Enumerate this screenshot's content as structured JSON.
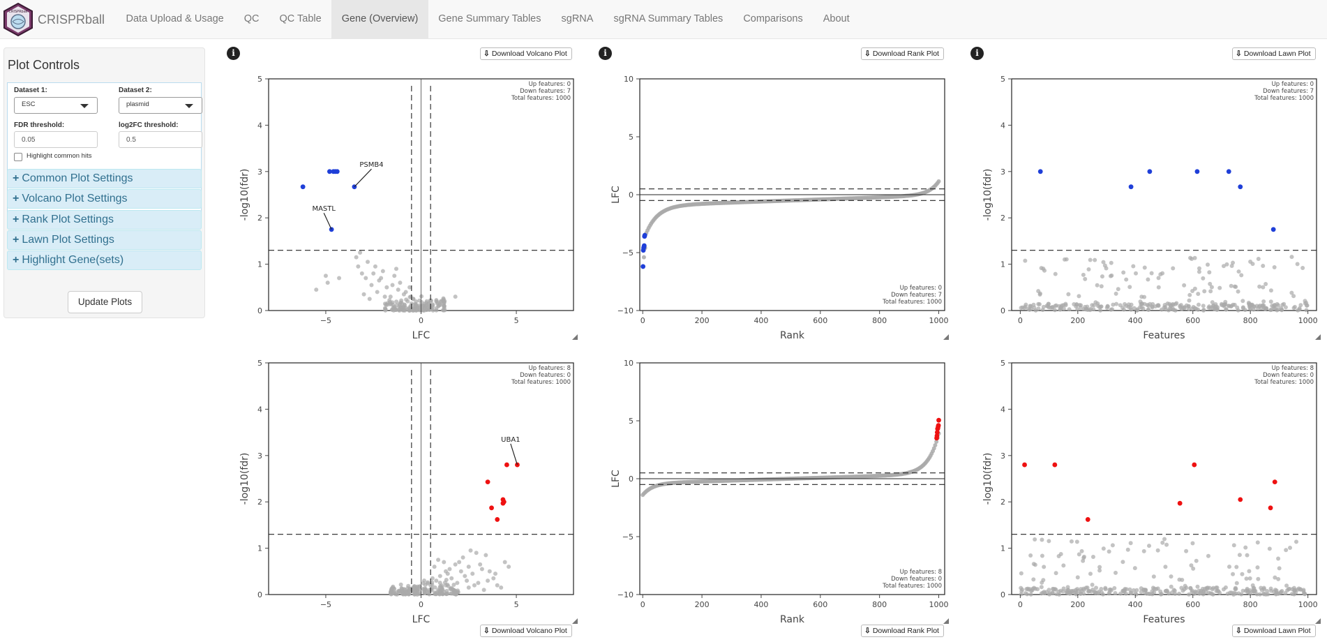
{
  "app": {
    "brand": "CRISPRball",
    "logo_text": "CRISPRball"
  },
  "nav": [
    {
      "label": "Data Upload & Usage",
      "key": "upload",
      "active": false
    },
    {
      "label": "QC",
      "key": "qc",
      "active": false
    },
    {
      "label": "QC Table",
      "key": "qc-table",
      "active": false
    },
    {
      "label": "Gene (Overview)",
      "key": "gene-overview",
      "active": true
    },
    {
      "label": "Gene Summary Tables",
      "key": "gene-tables",
      "active": false
    },
    {
      "label": "sgRNA",
      "key": "sgrna",
      "active": false
    },
    {
      "label": "sgRNA Summary Tables",
      "key": "sgrna-tables",
      "active": false
    },
    {
      "label": "Comparisons",
      "key": "comparisons",
      "active": false
    },
    {
      "label": "About",
      "key": "about",
      "active": false
    }
  ],
  "sidebar": {
    "title": "Plot Controls",
    "dataset1_label": "Dataset 1:",
    "dataset1_value": "ESC",
    "dataset2_label": "Dataset 2:",
    "dataset2_value": "plasmid",
    "fdr_label": "FDR threshold:",
    "fdr_value": "0.05",
    "lfc_label": "log2FC threshold:",
    "lfc_value": "0.5",
    "highlight_label": "Highlight common hits",
    "accordions": [
      "Common Plot Settings",
      "Volcano Plot Settings",
      "Rank Plot Settings",
      "Lawn Plot Settings",
      "Highlight Gene(sets)"
    ],
    "update_button": "Update Plots"
  },
  "buttons": {
    "volcano": "Download Volcano Plot",
    "rank": "Download Rank Plot",
    "lawn": "Download Lawn Plot",
    "info_glyph": "i",
    "download_glyph": "⇩"
  },
  "colors": {
    "down": "#1f3fd8",
    "up": "#ee1111",
    "ns": "#a9a9a9"
  },
  "plots": {
    "volcano_top": {
      "xlabel": "LFC",
      "ylabel": "-log10(fdr)",
      "ann": [
        "Up features: 0",
        "Down features: 7",
        "Total features: 1000"
      ],
      "labels": [
        {
          "text": "PSMB4",
          "x": -3.5,
          "y": 2.67,
          "tx": -2.6,
          "ty": 3.1
        },
        {
          "text": "MASTL",
          "x": -4.7,
          "y": 1.75,
          "tx": -5.1,
          "ty": 2.15
        }
      ]
    },
    "volcano_bottom": {
      "xlabel": "LFC",
      "ylabel": "-log10(fdr)",
      "ann": [
        "Up features: 8",
        "Down features: 0",
        "Total features: 1000"
      ],
      "labels": [
        {
          "text": "UBA1",
          "x": 5.05,
          "y": 2.8,
          "tx": 4.7,
          "ty": 3.3
        }
      ]
    },
    "rank_top": {
      "xlabel": "Rank",
      "ylabel": "LFC",
      "ann": [
        "Up features: 0",
        "Down features: 7",
        "Total features: 1000"
      ]
    },
    "rank_bottom": {
      "xlabel": "Rank",
      "ylabel": "LFC",
      "ann": [
        "Up features: 8",
        "Down features: 0",
        "Total features: 1000"
      ]
    },
    "lawn_top": {
      "xlabel": "Features",
      "ylabel": "-log10(fdr)",
      "ann": [
        "Up features: 0",
        "Down features: 7",
        "Total features: 1000"
      ]
    },
    "lawn_bottom": {
      "xlabel": "Features",
      "ylabel": "-log10(fdr)",
      "ann": [
        "Up features: 8",
        "Down features: 0",
        "Total features: 1000"
      ]
    }
  },
  "chart_data": [
    {
      "type": "scatter",
      "id": "volcano_top",
      "xlabel": "LFC",
      "ylabel": "-log10(fdr)",
      "xlim": [
        -8,
        8
      ],
      "ylim": [
        0,
        5
      ],
      "xticks": [
        -5,
        0,
        5
      ],
      "yticks": [
        0,
        1,
        2,
        3,
        4,
        5
      ],
      "hlines": [
        1.3
      ],
      "vlines": [
        -0.5,
        0.5
      ],
      "highlight": {
        "color": "down",
        "x": [
          -6.2,
          -4.8,
          -4.6,
          -4.5,
          -4.4,
          -3.5,
          -4.7
        ],
        "y": [
          2.67,
          3.0,
          3.0,
          3.0,
          3.0,
          2.67,
          1.75
        ]
      },
      "background": {
        "color": "ns",
        "x": [
          -5.0,
          -4.9,
          -4.3,
          -3.4,
          -3.3,
          -3.1,
          -2.9,
          -2.8,
          -2.6,
          -2.5,
          -2.3,
          -2.2,
          -2.0,
          -1.8,
          -1.6,
          -1.4,
          -1.2,
          -1.1,
          -0.9,
          -0.7,
          -0.5,
          -3.2,
          -2.4,
          -1.9,
          -1.5,
          -5.5,
          -2.7,
          -1.3,
          -0.8,
          -0.3,
          0.1,
          0.4,
          0.8,
          1.2,
          1.8,
          -0.6,
          0.2,
          0.6,
          1.0,
          -2.1,
          -3.0,
          -1.0,
          -0.4,
          0.0,
          0.3
        ],
        "y": [
          0.75,
          0.6,
          0.7,
          1.15,
          0.95,
          0.8,
          0.7,
          1.05,
          0.55,
          0.8,
          0.4,
          0.65,
          0.85,
          0.5,
          0.3,
          0.75,
          0.45,
          0.6,
          0.35,
          0.2,
          0.15,
          1.25,
          0.95,
          0.3,
          0.55,
          0.45,
          0.25,
          0.9,
          0.4,
          0.1,
          0.1,
          0.15,
          0.2,
          0.1,
          0.3,
          0.5,
          0.05,
          0.08,
          0.12,
          0.7,
          0.35,
          0.15,
          0.25,
          0.05,
          0.2
        ]
      }
    },
    {
      "type": "scatter",
      "id": "volcano_bottom",
      "xlabel": "LFC",
      "ylabel": "-log10(fdr)",
      "xlim": [
        -8,
        8
      ],
      "ylim": [
        0,
        5
      ],
      "xticks": [
        -5,
        0,
        5
      ],
      "yticks": [
        0,
        1,
        2,
        3,
        4,
        5
      ],
      "hlines": [
        1.3
      ],
      "vlines": [
        -0.5,
        0.5
      ],
      "highlight": {
        "color": "up",
        "x": [
          3.5,
          3.7,
          4.0,
          4.3,
          4.3,
          4.5,
          5.05,
          4.35
        ],
        "y": [
          2.43,
          1.87,
          1.62,
          2.05,
          1.97,
          2.8,
          2.8,
          2.0
        ]
      },
      "background": {
        "color": "ns",
        "x": [
          0.7,
          0.9,
          1.0,
          1.2,
          1.3,
          1.5,
          1.6,
          1.8,
          1.9,
          2.1,
          2.2,
          2.4,
          2.5,
          2.7,
          2.9,
          3.0,
          3.2,
          3.4,
          3.6,
          3.8,
          4.0,
          4.2,
          4.6,
          0.8,
          1.1,
          1.4,
          1.7,
          2.0,
          2.3,
          2.6,
          2.8,
          3.1,
          3.3,
          3.5,
          3.9,
          4.4,
          0.5,
          0.6,
          0.9,
          1.3,
          1.9,
          2.5,
          0.2,
          -0.2,
          -0.6,
          -1.0,
          -1.4,
          0.4
        ],
        "y": [
          0.6,
          0.75,
          0.4,
          0.7,
          0.2,
          0.55,
          0.35,
          0.65,
          0.25,
          0.5,
          0.8,
          0.3,
          0.6,
          0.45,
          0.9,
          0.25,
          0.55,
          0.85,
          0.5,
          0.35,
          0.2,
          0.15,
          0.6,
          0.3,
          0.15,
          0.45,
          0.1,
          0.7,
          0.4,
          0.95,
          0.2,
          0.65,
          0.1,
          0.3,
          0.45,
          0.7,
          0.2,
          0.35,
          0.1,
          0.5,
          0.05,
          0.15,
          0.1,
          0.1,
          0.12,
          0.1,
          0.12,
          0.05
        ]
      }
    },
    {
      "type": "scatter",
      "id": "rank_top",
      "xlabel": "Rank",
      "ylabel": "LFC",
      "xlim": [
        -10,
        1020
      ],
      "ylim": [
        -10,
        10
      ],
      "xticks": [
        0,
        200,
        400,
        600,
        800,
        1000
      ],
      "yticks": [
        -10,
        -5,
        0,
        5,
        10
      ],
      "hlines": [
        0.5,
        -0.5,
        0
      ],
      "curve": {
        "n": 1000,
        "min": -6.2,
        "max": 1.8
      },
      "highlight": {
        "color": "down",
        "x": [
          1,
          2,
          3,
          4,
          5,
          6,
          7
        ],
        "y": [
          -6.2,
          -4.8,
          -4.6,
          -4.5,
          -4.4,
          -3.6,
          -3.5
        ]
      }
    },
    {
      "type": "scatter",
      "id": "rank_bottom",
      "xlabel": "Rank",
      "ylabel": "LFC",
      "xlim": [
        -10,
        1020
      ],
      "ylim": [
        -10,
        10
      ],
      "xticks": [
        0,
        200,
        400,
        600,
        800,
        1000
      ],
      "yticks": [
        -10,
        -5,
        0,
        5,
        10
      ],
      "hlines": [
        0.5,
        -0.5,
        0
      ],
      "curve": {
        "n": 1000,
        "min": -1.8,
        "max": 5.05
      },
      "highlight": {
        "color": "up",
        "x": [
          993,
          994,
          995,
          996,
          997,
          998,
          999,
          1000
        ],
        "y": [
          3.5,
          3.7,
          4.0,
          4.3,
          4.35,
          4.5,
          4.6,
          5.05
        ]
      }
    },
    {
      "type": "scatter",
      "id": "lawn_top",
      "xlabel": "Features",
      "ylabel": "-log10(fdr)",
      "xlim": [
        -30,
        1030
      ],
      "ylim": [
        0,
        5
      ],
      "xticks": [
        0,
        200,
        400,
        600,
        800,
        1000
      ],
      "yticks": [
        0,
        1,
        2,
        3,
        4,
        5
      ],
      "hlines": [
        1.3
      ],
      "highlight": {
        "color": "down",
        "x": [
          70,
          385,
          450,
          615,
          725,
          765,
          880
        ],
        "y": [
          3.0,
          2.67,
          3.0,
          3.0,
          3.0,
          2.67,
          1.75
        ]
      }
    },
    {
      "type": "scatter",
      "id": "lawn_bottom",
      "xlabel": "Features",
      "ylabel": "-log10(fdr)",
      "xlim": [
        -30,
        1030
      ],
      "ylim": [
        0,
        5
      ],
      "xticks": [
        0,
        200,
        400,
        600,
        800,
        1000
      ],
      "yticks": [
        0,
        1,
        2,
        3,
        4,
        5
      ],
      "hlines": [
        1.3
      ],
      "highlight": {
        "color": "up",
        "x": [
          15,
          120,
          235,
          555,
          605,
          765,
          870,
          885
        ],
        "y": [
          2.8,
          2.8,
          1.62,
          1.97,
          2.8,
          2.05,
          1.87,
          2.43
        ]
      }
    }
  ]
}
